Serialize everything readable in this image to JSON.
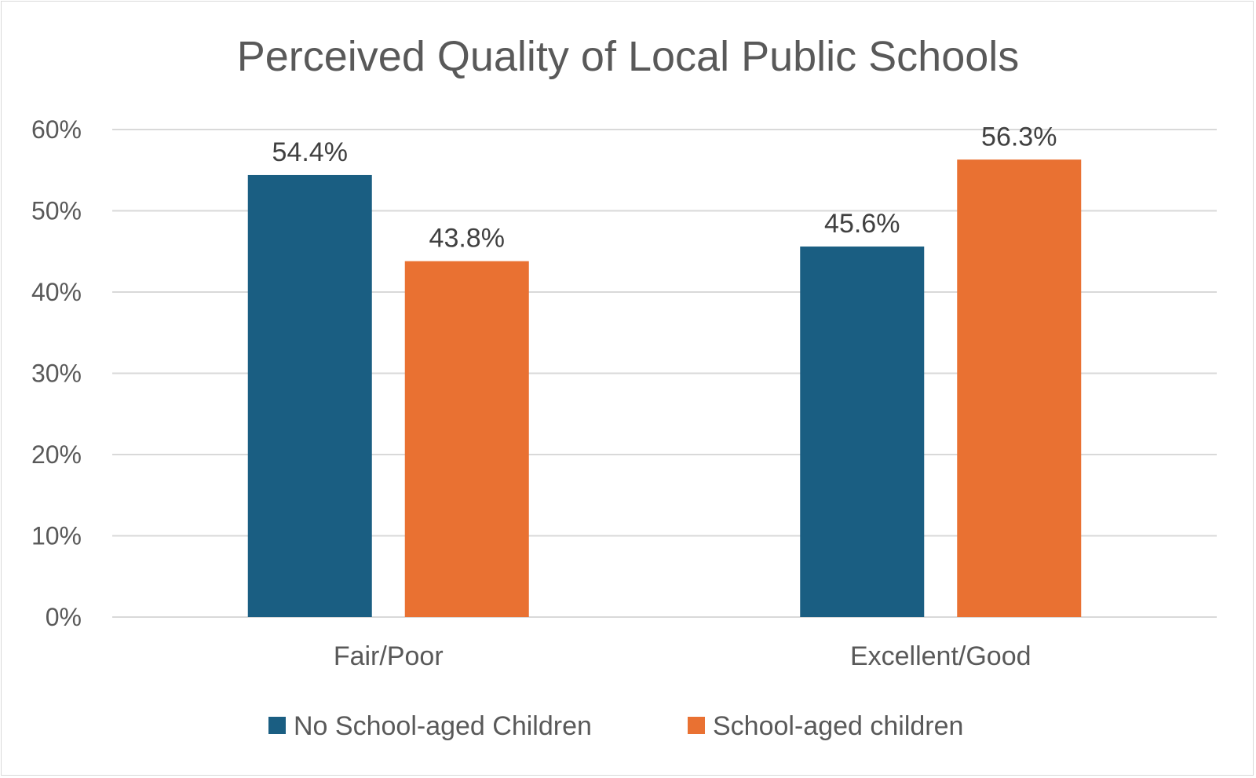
{
  "chart_data": {
    "type": "bar",
    "title": "Perceived Quality of Local Public Schools",
    "xlabel": "",
    "ylabel": "",
    "categories": [
      "Fair/Poor",
      "Excellent/Good"
    ],
    "series": [
      {
        "name": "No School-aged Children",
        "values": [
          54.4,
          45.6
        ],
        "labels": [
          "54.4%",
          "45.6%"
        ],
        "color": "#1a5e82"
      },
      {
        "name": "School-aged children",
        "values": [
          43.8,
          56.3
        ],
        "labels": [
          "43.8%",
          "56.3%"
        ],
        "color": "#e97132"
      }
    ],
    "ylim": [
      0,
      60
    ],
    "yticks": [
      0,
      10,
      20,
      30,
      40,
      50,
      60
    ],
    "ytick_labels": [
      "0%",
      "10%",
      "20%",
      "30%",
      "40%",
      "50%",
      "60%"
    ],
    "grid": true,
    "gridline_color": "#d9d9d9",
    "legend_position": "bottom"
  }
}
